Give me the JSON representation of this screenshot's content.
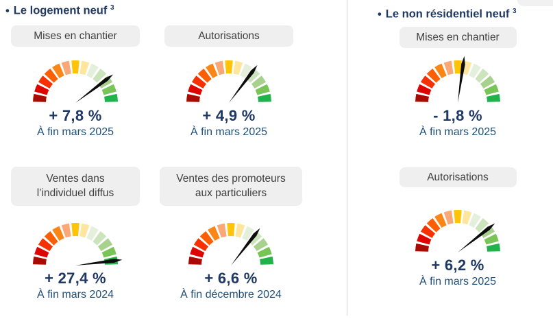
{
  "bullet": "•",
  "sections": [
    {
      "title": "Le logement neuf",
      "footnote_marker": "3",
      "gauges": [
        {
          "label_lines": [
            "Mises en chantier"
          ],
          "value": "+ 7,8 %",
          "period": "À fin mars 2025",
          "needle_angle_deg": 37
        },
        {
          "label_lines": [
            "Autorisations"
          ],
          "value": "+ 4,9 %",
          "period": "À fin mars 2025",
          "needle_angle_deg": 53
        },
        {
          "label_lines": [
            "Ventes dans",
            "l’individuel diffus"
          ],
          "value": "+ 27,4 %",
          "period": "À fin mars 2024",
          "needle_angle_deg": 7
        },
        {
          "label_lines": [
            "Ventes des promoteurs",
            "aux particuliers"
          ],
          "value": "+ 6,6 %",
          "period": "À fin décembre 2024",
          "needle_angle_deg": 52
        }
      ]
    },
    {
      "title": "Le non résidentiel neuf",
      "footnote_marker": "3",
      "gauges": [
        {
          "label_lines": [
            "Mises en chantier"
          ],
          "value": "- 1,8 %",
          "period": "À fin mars 2025",
          "needle_angle_deg": 82
        },
        {
          "label_lines": [
            "Autorisations"
          ],
          "value": "+ 6,2 %",
          "period": "À fin mars 2025",
          "needle_angle_deg": 38
        }
      ]
    }
  ],
  "gauge": {
    "segment_colors": [
      "#AA0A03",
      "#DE0400",
      "#F63000",
      "#FB5E04",
      "#F98617",
      "#FBA878",
      "#FFC408",
      "#FFE69F",
      "#E4F0DC",
      "#CCE4BB",
      "#A9D18E",
      "#78C457",
      "#22B24C"
    ],
    "needle_color": "#0D0D0D"
  },
  "colors": {
    "title_text": "#1F3864",
    "value_text": "#1F3864",
    "period_text": "#1F4E79",
    "label_box_bg": "#EFEFEF",
    "label_box_text": "#3F3F3F",
    "divider": "#D6D6D6"
  },
  "chart_data": [
    {
      "type": "gauge",
      "group": "Le logement neuf",
      "title": "Mises en chantier",
      "value_pct": 7.8,
      "value_label": "+ 7,8 %",
      "period": "À fin mars 2025",
      "scale": "red-to-green semicircle, 13 segments"
    },
    {
      "type": "gauge",
      "group": "Le logement neuf",
      "title": "Autorisations",
      "value_pct": 4.9,
      "value_label": "+ 4,9 %",
      "period": "À fin mars 2025",
      "scale": "red-to-green semicircle, 13 segments"
    },
    {
      "type": "gauge",
      "group": "Le logement neuf",
      "title": "Ventes dans l’individuel diffus",
      "value_pct": 27.4,
      "value_label": "+ 27,4 %",
      "period": "À fin mars 2024",
      "scale": "red-to-green semicircle, 13 segments"
    },
    {
      "type": "gauge",
      "group": "Le logement neuf",
      "title": "Ventes des promoteurs aux particuliers",
      "value_pct": 6.6,
      "value_label": "+ 6,6 %",
      "period": "À fin décembre 2024",
      "scale": "red-to-green semicircle, 13 segments"
    },
    {
      "type": "gauge",
      "group": "Le non résidentiel neuf",
      "title": "Mises en chantier",
      "value_pct": -1.8,
      "value_label": "- 1,8 %",
      "period": "À fin mars 2025",
      "scale": "red-to-green semicircle, 13 segments"
    },
    {
      "type": "gauge",
      "group": "Le non résidentiel neuf",
      "title": "Autorisations",
      "value_pct": 6.2,
      "value_label": "+ 6,2 %",
      "period": "À fin mars 2025",
      "scale": "red-to-green semicircle, 13 segments"
    }
  ]
}
